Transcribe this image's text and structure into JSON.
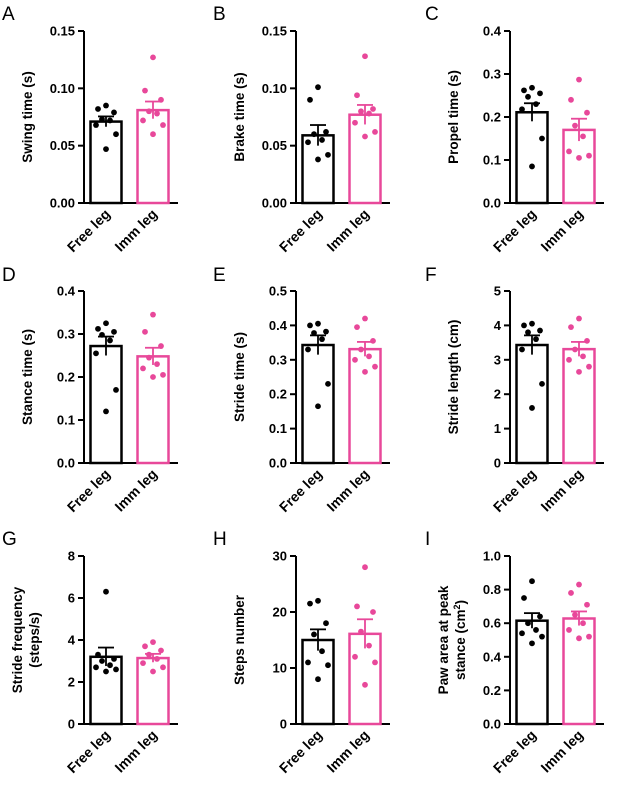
{
  "colors": {
    "free": "#000000",
    "imm": "#e8489a"
  },
  "chart_data": [
    {
      "type": "bar",
      "letter": "A",
      "ylabel": "Swing time (s)",
      "categories": [
        "Free leg",
        "Imm leg"
      ],
      "ylim": [
        0,
        0.15
      ],
      "ticks": [
        "0.00",
        "0.05",
        "0.10",
        "0.15"
      ],
      "series": [
        {
          "name": "Free leg",
          "mean": 0.071,
          "sem": 0.0045,
          "points": [
            0.085,
            0.082,
            0.079,
            0.073,
            0.072,
            0.068,
            0.06,
            0.047
          ]
        },
        {
          "name": "Imm leg",
          "mean": 0.081,
          "sem": 0.0075,
          "points": [
            0.127,
            0.098,
            0.09,
            0.08,
            0.078,
            0.072,
            0.068,
            0.06
          ]
        }
      ]
    },
    {
      "type": "bar",
      "letter": "B",
      "ylabel": "Brake time (s)",
      "categories": [
        "Free leg",
        "Imm leg"
      ],
      "ylim": [
        0,
        0.15
      ],
      "ticks": [
        "0.00",
        "0.05",
        "0.10",
        "0.15"
      ],
      "series": [
        {
          "name": "Free leg",
          "mean": 0.059,
          "sem": 0.009,
          "points": [
            0.101,
            0.09,
            0.062,
            0.06,
            0.055,
            0.053,
            0.042,
            0.038
          ]
        },
        {
          "name": "Imm leg",
          "mean": 0.077,
          "sem": 0.0085,
          "points": [
            0.128,
            0.094,
            0.082,
            0.08,
            0.078,
            0.07,
            0.062,
            0.058
          ]
        }
      ]
    },
    {
      "type": "bar",
      "letter": "C",
      "ylabel": "Propel time (s)",
      "categories": [
        "Free leg",
        "Imm leg"
      ],
      "ylim": [
        0,
        0.4
      ],
      "ticks": [
        "0.0",
        "0.1",
        "0.2",
        "0.3",
        "0.4"
      ],
      "series": [
        {
          "name": "Free leg",
          "mean": 0.211,
          "sem": 0.021,
          "points": [
            0.268,
            0.262,
            0.255,
            0.247,
            0.23,
            0.218,
            0.15,
            0.085
          ]
        },
        {
          "name": "Imm leg",
          "mean": 0.17,
          "sem": 0.026,
          "points": [
            0.287,
            0.24,
            0.21,
            0.18,
            0.155,
            0.12,
            0.11,
            0.105
          ]
        }
      ]
    },
    {
      "type": "bar",
      "letter": "D",
      "ylabel": "Stance time (s)",
      "categories": [
        "Free leg",
        "Imm leg"
      ],
      "ylim": [
        0,
        0.4
      ],
      "ticks": [
        "0.0",
        "0.1",
        "0.2",
        "0.3",
        "0.4"
      ],
      "series": [
        {
          "name": "Free leg",
          "mean": 0.272,
          "sem": 0.022,
          "points": [
            0.325,
            0.312,
            0.305,
            0.298,
            0.285,
            0.255,
            0.17,
            0.12
          ]
        },
        {
          "name": "Imm leg",
          "mean": 0.248,
          "sem": 0.02,
          "points": [
            0.345,
            0.305,
            0.272,
            0.245,
            0.23,
            0.22,
            0.205,
            0.2
          ]
        }
      ]
    },
    {
      "type": "bar",
      "letter": "E",
      "ylabel": "Stride time (s)",
      "categories": [
        "Free leg",
        "Imm leg"
      ],
      "ylim": [
        0,
        0.5
      ],
      "ticks": [
        "0.0",
        "0.1",
        "0.2",
        "0.3",
        "0.4",
        "0.5"
      ],
      "series": [
        {
          "name": "Free leg",
          "mean": 0.343,
          "sem": 0.028,
          "points": [
            0.405,
            0.4,
            0.382,
            0.378,
            0.36,
            0.33,
            0.23,
            0.165
          ]
        },
        {
          "name": "Imm leg",
          "mean": 0.331,
          "sem": 0.021,
          "points": [
            0.42,
            0.395,
            0.355,
            0.33,
            0.31,
            0.3,
            0.28,
            0.265
          ]
        }
      ]
    },
    {
      "type": "bar",
      "letter": "F",
      "ylabel": "Stride length (cm)",
      "categories": [
        "Free leg",
        "Imm leg"
      ],
      "ylim": [
        0,
        5
      ],
      "ticks": [
        "0",
        "1",
        "2",
        "3",
        "4",
        "5"
      ],
      "series": [
        {
          "name": "Free leg",
          "mean": 3.43,
          "sem": 0.28,
          "points": [
            4.05,
            4.0,
            3.85,
            3.8,
            3.6,
            3.3,
            2.3,
            1.6
          ]
        },
        {
          "name": "Imm leg",
          "mean": 3.31,
          "sem": 0.21,
          "points": [
            4.2,
            3.95,
            3.55,
            3.3,
            3.1,
            3.0,
            2.8,
            2.65
          ]
        }
      ]
    },
    {
      "type": "bar",
      "letter": "G",
      "ylabel": "Stride frequency (steps/s)",
      "ylabel_lines": [
        "Stride frequency",
        "(steps/s)"
      ],
      "categories": [
        "Free leg",
        "Imm leg"
      ],
      "ylim": [
        0,
        8
      ],
      "ticks": [
        "0",
        "2",
        "4",
        "6",
        "8"
      ],
      "series": [
        {
          "name": "Free leg",
          "mean": 3.2,
          "sem": 0.44,
          "points": [
            6.3,
            3.3,
            3.1,
            3.0,
            2.8,
            2.7,
            2.6,
            2.5
          ]
        },
        {
          "name": "Imm leg",
          "mean": 3.14,
          "sem": 0.2,
          "points": [
            3.9,
            3.7,
            3.5,
            3.3,
            3.1,
            2.9,
            2.7,
            2.5
          ]
        }
      ]
    },
    {
      "type": "bar",
      "letter": "H",
      "ylabel": "Steps number",
      "categories": [
        "Free leg",
        "Imm leg"
      ],
      "ylim": [
        0,
        30
      ],
      "ticks": [
        "0",
        "10",
        "20",
        "30"
      ],
      "series": [
        {
          "name": "Free leg",
          "mean": 15.0,
          "sem": 1.9,
          "points": [
            22.0,
            21.5,
            18.0,
            16.0,
            13.0,
            11.0,
            10.5,
            8.0
          ]
        },
        {
          "name": "Imm leg",
          "mean": 16.1,
          "sem": 2.6,
          "points": [
            28.0,
            21.0,
            20.0,
            16.5,
            14.0,
            12.0,
            11.0,
            7.0
          ]
        }
      ]
    },
    {
      "type": "bar",
      "letter": "I",
      "ylabel": "Paw area at peak stance (cm²)",
      "ylabel_lines": [
        "Paw area at peak",
        "stance (cm",
        "2",
        ")"
      ],
      "categories": [
        "Free leg",
        "Imm leg"
      ],
      "ylim": [
        0,
        1.0
      ],
      "ticks": [
        "0.0",
        "0.2",
        "0.4",
        "0.6",
        "0.8",
        "1.0"
      ],
      "series": [
        {
          "name": "Free leg",
          "mean": 0.615,
          "sem": 0.045,
          "points": [
            0.85,
            0.75,
            0.64,
            0.6,
            0.56,
            0.54,
            0.52,
            0.48
          ]
        },
        {
          "name": "Imm leg",
          "mean": 0.628,
          "sem": 0.042,
          "points": [
            0.83,
            0.78,
            0.71,
            0.65,
            0.6,
            0.56,
            0.52,
            0.51
          ]
        }
      ]
    }
  ]
}
